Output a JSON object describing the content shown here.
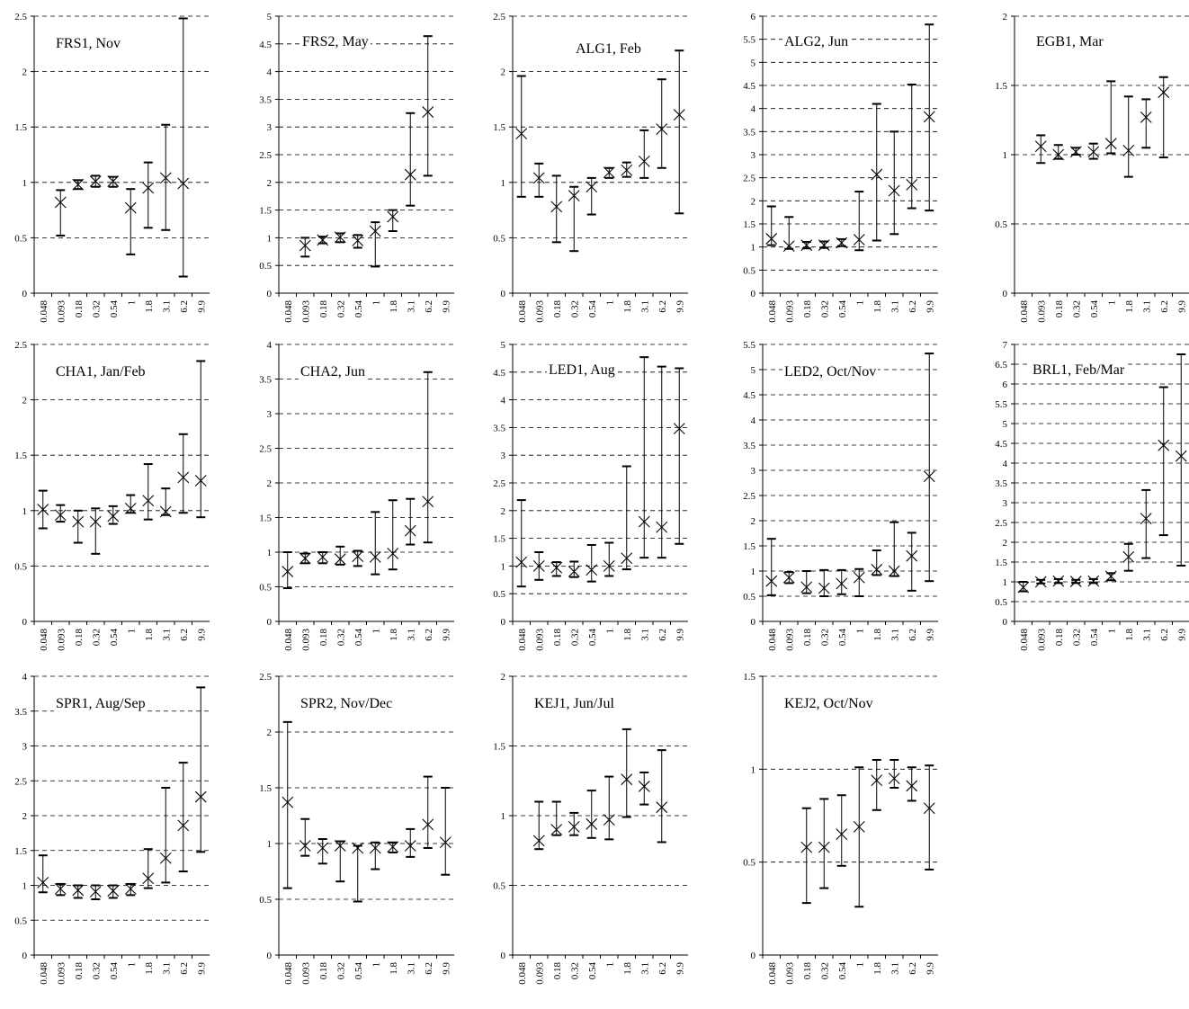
{
  "x_ticks": [
    "0.048",
    "0.093",
    "0.18",
    "0.32",
    "0.54",
    "1",
    "1.8",
    "3.1",
    "6.2",
    "9.9"
  ],
  "chart_data": [
    {
      "type": "scatter",
      "title": "FRS1, Nov",
      "ylim": [
        0,
        2.5
      ],
      "yticks": [
        "0",
        "0.5",
        "1",
        "1.5",
        "2",
        "2.5"
      ],
      "grid": "dashed-horizontal",
      "points": [
        {
          "x": "0.093",
          "y": 0.82,
          "low": 0.52,
          "high": 0.93
        },
        {
          "x": "0.18",
          "y": 0.98,
          "low": 0.94,
          "high": 1.02
        },
        {
          "x": "0.32",
          "y": 1.01,
          "low": 0.96,
          "high": 1.06
        },
        {
          "x": "0.54",
          "y": 1.01,
          "low": 0.96,
          "high": 1.05
        },
        {
          "x": "1",
          "y": 0.77,
          "low": 0.35,
          "high": 0.94
        },
        {
          "x": "1.8",
          "y": 0.95,
          "low": 0.59,
          "high": 1.18
        },
        {
          "x": "3.1",
          "y": 1.04,
          "low": 0.57,
          "high": 1.52
        },
        {
          "x": "6.2",
          "y": 0.99,
          "low": 0.15,
          "high": 2.48
        }
      ]
    },
    {
      "type": "scatter",
      "title": "FRS2, May",
      "ylim": [
        0,
        5
      ],
      "yticks": [
        "0",
        "0.5",
        "1",
        "1.5",
        "2",
        "2.5",
        "3",
        "3.5",
        "4",
        "4.5",
        "5"
      ],
      "grid": "dashed-horizontal",
      "points": [
        {
          "x": "0.093",
          "y": 0.86,
          "low": 0.66,
          "high": 1.0
        },
        {
          "x": "0.18",
          "y": 0.96,
          "low": 0.9,
          "high": 1.02
        },
        {
          "x": "0.32",
          "y": 1.01,
          "low": 0.92,
          "high": 1.08
        },
        {
          "x": "0.54",
          "y": 0.95,
          "low": 0.82,
          "high": 1.05
        },
        {
          "x": "1",
          "y": 1.12,
          "low": 0.48,
          "high": 1.28
        },
        {
          "x": "1.8",
          "y": 1.38,
          "low": 1.12,
          "high": 1.5
        },
        {
          "x": "3.1",
          "y": 2.14,
          "low": 1.58,
          "high": 3.25
        },
        {
          "x": "6.2",
          "y": 3.27,
          "low": 2.12,
          "high": 4.64
        }
      ]
    },
    {
      "type": "scatter",
      "title": "ALG1, Feb",
      "ylim": [
        0,
        2.5
      ],
      "yticks": [
        "0",
        "0.5",
        "1",
        "1.5",
        "2",
        "2.5"
      ],
      "grid": "dashed-horizontal",
      "points": [
        {
          "x": "0.048",
          "y": 1.44,
          "low": 0.87,
          "high": 1.96
        },
        {
          "x": "0.093",
          "y": 1.04,
          "low": 0.87,
          "high": 1.17
        },
        {
          "x": "0.18",
          "y": 0.78,
          "low": 0.46,
          "high": 1.06
        },
        {
          "x": "0.32",
          "y": 0.88,
          "low": 0.38,
          "high": 0.96
        },
        {
          "x": "0.54",
          "y": 0.96,
          "low": 0.71,
          "high": 1.04
        },
        {
          "x": "1",
          "y": 1.09,
          "low": 1.04,
          "high": 1.13
        },
        {
          "x": "1.8",
          "y": 1.11,
          "low": 1.05,
          "high": 1.18
        },
        {
          "x": "3.1",
          "y": 1.19,
          "low": 1.04,
          "high": 1.47
        },
        {
          "x": "6.2",
          "y": 1.48,
          "low": 1.13,
          "high": 1.93
        },
        {
          "x": "9.9",
          "y": 1.61,
          "low": 0.72,
          "high": 2.19
        }
      ]
    },
    {
      "type": "scatter",
      "title": "ALG2, Jun",
      "ylim": [
        0,
        6
      ],
      "yticks": [
        "0",
        "0.5",
        "1",
        "1.5",
        "2",
        "2.5",
        "3",
        "3.5",
        "4",
        "4.5",
        "5",
        "5.5",
        "6"
      ],
      "grid": "dashed-horizontal",
      "points": [
        {
          "x": "0.048",
          "y": 1.18,
          "low": 1.04,
          "high": 1.88
        },
        {
          "x": "0.093",
          "y": 1.02,
          "low": 0.96,
          "high": 1.65
        },
        {
          "x": "0.18",
          "y": 1.04,
          "low": 0.97,
          "high": 1.11
        },
        {
          "x": "0.32",
          "y": 1.04,
          "low": 0.98,
          "high": 1.12
        },
        {
          "x": "0.54",
          "y": 1.09,
          "low": 1.02,
          "high": 1.17
        },
        {
          "x": "1",
          "y": 1.16,
          "low": 0.93,
          "high": 2.2
        },
        {
          "x": "1.8",
          "y": 2.57,
          "low": 1.14,
          "high": 4.1
        },
        {
          "x": "3.1",
          "y": 2.22,
          "low": 1.28,
          "high": 3.5
        },
        {
          "x": "6.2",
          "y": 2.35,
          "low": 1.84,
          "high": 4.52
        },
        {
          "x": "9.9",
          "y": 3.82,
          "low": 1.79,
          "high": 5.82
        }
      ]
    },
    {
      "type": "scatter",
      "title": "EGB1, Mar",
      "ylim": [
        0,
        2
      ],
      "yticks": [
        "0",
        "0.5",
        "1",
        "1.5",
        "2"
      ],
      "grid": "dashed-horizontal",
      "points": [
        {
          "x": "0.093",
          "y": 1.06,
          "low": 0.94,
          "high": 1.14
        },
        {
          "x": "0.18",
          "y": 1.0,
          "low": 0.97,
          "high": 1.07
        },
        {
          "x": "0.32",
          "y": 1.02,
          "low": 1.0,
          "high": 1.05
        },
        {
          "x": "0.54",
          "y": 1.02,
          "low": 0.97,
          "high": 1.08
        },
        {
          "x": "1",
          "y": 1.08,
          "low": 1.01,
          "high": 1.53
        },
        {
          "x": "1.8",
          "y": 1.03,
          "low": 0.84,
          "high": 1.42
        },
        {
          "x": "3.1",
          "y": 1.27,
          "low": 1.05,
          "high": 1.4
        },
        {
          "x": "6.2",
          "y": 1.45,
          "low": 0.98,
          "high": 1.56
        }
      ]
    },
    {
      "type": "scatter",
      "title": "CHA1, Jan/Feb",
      "ylim": [
        0,
        2.5
      ],
      "yticks": [
        "0",
        "0.5",
        "1",
        "1.5",
        "2",
        "2.5"
      ],
      "grid": "dashed-horizontal",
      "points": [
        {
          "x": "0.048",
          "y": 1.01,
          "low": 0.84,
          "high": 1.18
        },
        {
          "x": "0.093",
          "y": 0.96,
          "low": 0.9,
          "high": 1.05
        },
        {
          "x": "0.18",
          "y": 0.9,
          "low": 0.71,
          "high": 1.0
        },
        {
          "x": "0.32",
          "y": 0.9,
          "low": 0.61,
          "high": 1.02
        },
        {
          "x": "0.54",
          "y": 0.95,
          "low": 0.88,
          "high": 1.04
        },
        {
          "x": "1",
          "y": 1.02,
          "low": 0.98,
          "high": 1.14
        },
        {
          "x": "1.8",
          "y": 1.09,
          "low": 0.92,
          "high": 1.42
        },
        {
          "x": "3.1",
          "y": 0.99,
          "low": 0.96,
          "high": 1.2
        },
        {
          "x": "6.2",
          "y": 1.3,
          "low": 0.98,
          "high": 1.69
        },
        {
          "x": "9.9",
          "y": 1.27,
          "low": 0.94,
          "high": 2.35
        }
      ]
    },
    {
      "type": "scatter",
      "title": "CHA2, Jun",
      "ylim": [
        0,
        4
      ],
      "yticks": [
        "0",
        "0.5",
        "1",
        "1.5",
        "2",
        "2.5",
        "3",
        "3.5",
        "4"
      ],
      "grid": "dashed-horizontal",
      "points": [
        {
          "x": "0.048",
          "y": 0.72,
          "low": 0.48,
          "high": 1.0
        },
        {
          "x": "0.093",
          "y": 0.91,
          "low": 0.84,
          "high": 0.98
        },
        {
          "x": "0.18",
          "y": 0.93,
          "low": 0.84,
          "high": 1.0
        },
        {
          "x": "0.32",
          "y": 0.9,
          "low": 0.82,
          "high": 1.08
        },
        {
          "x": "0.54",
          "y": 0.94,
          "low": 0.8,
          "high": 1.02
        },
        {
          "x": "1",
          "y": 0.93,
          "low": 0.68,
          "high": 1.58
        },
        {
          "x": "1.8",
          "y": 0.98,
          "low": 0.75,
          "high": 1.75
        },
        {
          "x": "3.1",
          "y": 1.31,
          "low": 1.11,
          "high": 1.77
        },
        {
          "x": "6.2",
          "y": 1.73,
          "low": 1.14,
          "high": 3.6
        }
      ]
    },
    {
      "type": "scatter",
      "title": "LED1, Aug",
      "ylim": [
        0,
        5
      ],
      "yticks": [
        "0",
        "0.5",
        "1",
        "1.5",
        "2",
        "2.5",
        "3",
        "3.5",
        "4",
        "4.5",
        "5"
      ],
      "grid": "dashed-horizontal",
      "points": [
        {
          "x": "0.048",
          "y": 1.07,
          "low": 0.63,
          "high": 2.19
        },
        {
          "x": "0.093",
          "y": 1.0,
          "low": 0.75,
          "high": 1.25
        },
        {
          "x": "0.18",
          "y": 0.97,
          "low": 0.82,
          "high": 1.07
        },
        {
          "x": "0.32",
          "y": 0.9,
          "low": 0.8,
          "high": 1.08
        },
        {
          "x": "0.54",
          "y": 0.93,
          "low": 0.72,
          "high": 1.38
        },
        {
          "x": "1",
          "y": 1.0,
          "low": 0.82,
          "high": 1.42
        },
        {
          "x": "1.8",
          "y": 1.14,
          "low": 0.94,
          "high": 2.8
        },
        {
          "x": "3.1",
          "y": 1.8,
          "low": 1.15,
          "high": 4.77
        },
        {
          "x": "6.2",
          "y": 1.7,
          "low": 1.15,
          "high": 4.6
        },
        {
          "x": "9.9",
          "y": 3.48,
          "low": 1.4,
          "high": 4.57
        }
      ]
    },
    {
      "type": "scatter",
      "title": "LED2, Oct/Nov",
      "ylim": [
        0,
        5.5
      ],
      "yticks": [
        "0",
        "0.5",
        "1",
        "1.5",
        "2",
        "2.5",
        "3",
        "3.5",
        "4",
        "4.5",
        "5",
        "5.5"
      ],
      "grid": "dashed-horizontal",
      "points": [
        {
          "x": "0.048",
          "y": 0.8,
          "low": 0.52,
          "high": 1.64
        },
        {
          "x": "0.093",
          "y": 0.87,
          "low": 0.76,
          "high": 0.98
        },
        {
          "x": "0.18",
          "y": 0.68,
          "low": 0.56,
          "high": 1.0
        },
        {
          "x": "0.32",
          "y": 0.66,
          "low": 0.5,
          "high": 1.02
        },
        {
          "x": "0.54",
          "y": 0.75,
          "low": 0.54,
          "high": 1.02
        },
        {
          "x": "1",
          "y": 0.87,
          "low": 0.5,
          "high": 1.04
        },
        {
          "x": "1.8",
          "y": 1.03,
          "low": 0.92,
          "high": 1.41
        },
        {
          "x": "3.1",
          "y": 1.0,
          "low": 0.9,
          "high": 1.97
        },
        {
          "x": "6.2",
          "y": 1.3,
          "low": 0.61,
          "high": 1.76
        },
        {
          "x": "9.9",
          "y": 2.88,
          "low": 0.8,
          "high": 5.32
        }
      ]
    },
    {
      "type": "scatter",
      "title": "BRL1, Feb/Mar",
      "ylim": [
        0,
        7
      ],
      "yticks": [
        "0",
        "0.5",
        "1",
        "1.5",
        "2",
        "2.5",
        "3",
        "3.5",
        "4",
        "4.5",
        "5",
        "5.5",
        "6",
        "6.5",
        "7"
      ],
      "grid": "dashed-horizontal",
      "points": [
        {
          "x": "0.048",
          "y": 0.86,
          "low": 0.76,
          "high": 1.0
        },
        {
          "x": "0.093",
          "y": 1.0,
          "low": 0.96,
          "high": 1.05
        },
        {
          "x": "0.18",
          "y": 1.02,
          "low": 0.97,
          "high": 1.07
        },
        {
          "x": "0.32",
          "y": 1.01,
          "low": 0.97,
          "high": 1.05
        },
        {
          "x": "0.54",
          "y": 1.02,
          "low": 0.97,
          "high": 1.07
        },
        {
          "x": "1",
          "y": 1.14,
          "low": 1.04,
          "high": 1.22
        },
        {
          "x": "1.8",
          "y": 1.63,
          "low": 1.28,
          "high": 1.96
        },
        {
          "x": "3.1",
          "y": 2.6,
          "low": 1.6,
          "high": 3.32
        },
        {
          "x": "6.2",
          "y": 4.45,
          "low": 2.18,
          "high": 5.92
        },
        {
          "x": "9.9",
          "y": 4.18,
          "low": 1.41,
          "high": 6.75
        }
      ]
    },
    {
      "type": "scatter",
      "title": "SPR1, Aug/Sep",
      "ylim": [
        0,
        4
      ],
      "yticks": [
        "0",
        "0.5",
        "1",
        "1.5",
        "2",
        "2.5",
        "3",
        "3.5",
        "4"
      ],
      "grid": "dashed-horizontal",
      "points": [
        {
          "x": "0.048",
          "y": 1.04,
          "low": 0.9,
          "high": 1.43
        },
        {
          "x": "0.093",
          "y": 0.95,
          "low": 0.86,
          "high": 1.02
        },
        {
          "x": "0.18",
          "y": 0.93,
          "low": 0.82,
          "high": 1.0
        },
        {
          "x": "0.32",
          "y": 0.91,
          "low": 0.8,
          "high": 1.0
        },
        {
          "x": "0.54",
          "y": 0.92,
          "low": 0.82,
          "high": 1.0
        },
        {
          "x": "1",
          "y": 0.95,
          "low": 0.86,
          "high": 1.02
        },
        {
          "x": "1.8",
          "y": 1.1,
          "low": 0.96,
          "high": 1.52
        },
        {
          "x": "3.1",
          "y": 1.39,
          "low": 1.04,
          "high": 2.4
        },
        {
          "x": "6.2",
          "y": 1.86,
          "low": 1.2,
          "high": 2.76
        },
        {
          "x": "9.9",
          "y": 2.27,
          "low": 1.48,
          "high": 3.84
        }
      ]
    },
    {
      "type": "scatter",
      "title": "SPR2, Nov/Dec",
      "ylim": [
        0,
        2.5
      ],
      "yticks": [
        "0",
        "0.5",
        "1",
        "1.5",
        "2",
        "2.5"
      ],
      "grid": "dashed-horizontal",
      "points": [
        {
          "x": "0.048",
          "y": 1.37,
          "low": 0.6,
          "high": 2.09
        },
        {
          "x": "0.093",
          "y": 0.98,
          "low": 0.89,
          "high": 1.22
        },
        {
          "x": "0.18",
          "y": 0.96,
          "low": 0.82,
          "high": 1.04
        },
        {
          "x": "0.32",
          "y": 0.98,
          "low": 0.66,
          "high": 1.02
        },
        {
          "x": "0.54",
          "y": 0.96,
          "low": 0.48,
          "high": 0.98
        },
        {
          "x": "1",
          "y": 0.96,
          "low": 0.77,
          "high": 1.01
        },
        {
          "x": "1.8",
          "y": 0.97,
          "low": 0.92,
          "high": 1.01
        },
        {
          "x": "3.1",
          "y": 0.98,
          "low": 0.88,
          "high": 1.13
        },
        {
          "x": "6.2",
          "y": 1.17,
          "low": 0.96,
          "high": 1.6
        },
        {
          "x": "9.9",
          "y": 1.01,
          "low": 0.72,
          "high": 1.5
        }
      ]
    },
    {
      "type": "scatter",
      "title": "KEJ1, Jun/Jul",
      "ylim": [
        0,
        2
      ],
      "yticks": [
        "0",
        "0.5",
        "1",
        "1.5",
        "2"
      ],
      "grid": "dashed-horizontal",
      "points": [
        {
          "x": "0.093",
          "y": 0.82,
          "low": 0.76,
          "high": 1.1
        },
        {
          "x": "0.18",
          "y": 0.9,
          "low": 0.86,
          "high": 1.1
        },
        {
          "x": "0.32",
          "y": 0.92,
          "low": 0.86,
          "high": 1.02
        },
        {
          "x": "0.54",
          "y": 0.94,
          "low": 0.84,
          "high": 1.18
        },
        {
          "x": "1",
          "y": 0.97,
          "low": 0.83,
          "high": 1.28
        },
        {
          "x": "1.8",
          "y": 1.26,
          "low": 0.99,
          "high": 1.62
        },
        {
          "x": "3.1",
          "y": 1.21,
          "low": 1.08,
          "high": 1.31
        },
        {
          "x": "6.2",
          "y": 1.06,
          "low": 0.81,
          "high": 1.47
        }
      ]
    },
    {
      "type": "scatter",
      "title": "KEJ2, Oct/Nov",
      "ylim": [
        0,
        1.5
      ],
      "yticks": [
        "0",
        "0.5",
        "1",
        "1.5"
      ],
      "grid": "dashed-horizontal",
      "points": [
        {
          "x": "0.18",
          "y": 0.58,
          "low": 0.28,
          "high": 0.79
        },
        {
          "x": "0.32",
          "y": 0.58,
          "low": 0.36,
          "high": 0.84
        },
        {
          "x": "0.54",
          "y": 0.65,
          "low": 0.48,
          "high": 0.86
        },
        {
          "x": "1",
          "y": 0.69,
          "low": 0.26,
          "high": 1.01
        },
        {
          "x": "1.8",
          "y": 0.94,
          "low": 0.78,
          "high": 1.05
        },
        {
          "x": "3.1",
          "y": 0.95,
          "low": 0.9,
          "high": 1.05
        },
        {
          "x": "6.2",
          "y": 0.91,
          "low": 0.83,
          "high": 1.01
        },
        {
          "x": "9.9",
          "y": 0.79,
          "low": 0.46,
          "high": 1.02
        }
      ]
    }
  ]
}
